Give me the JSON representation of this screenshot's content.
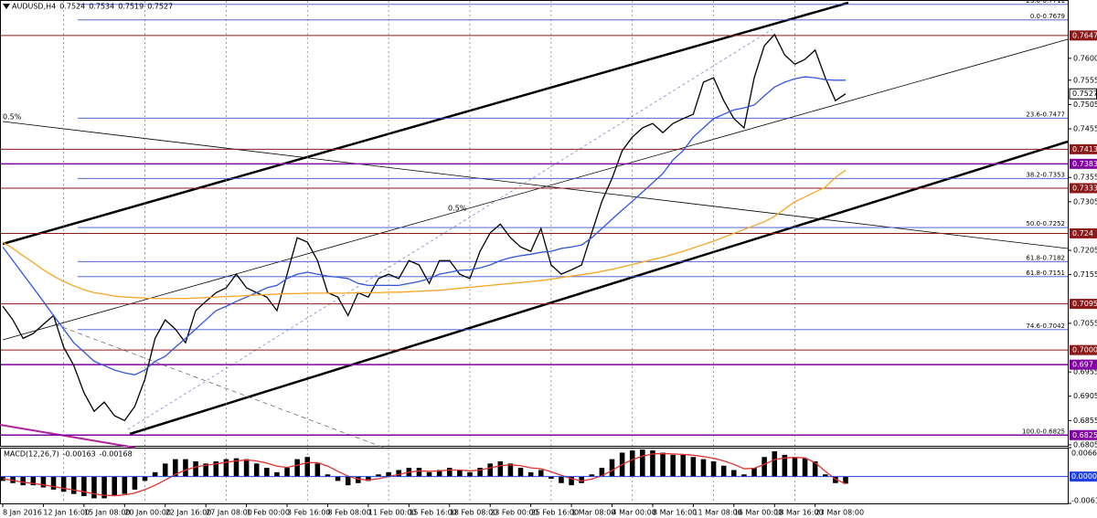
{
  "chart_data": [
    {
      "type": "line",
      "title": "AUDUSD,H4",
      "open": 0.7524,
      "high": 0.7534,
      "low": 0.7519,
      "categories": [
        "8 Jan 2016",
        null,
        null,
        null,
        "12 Jan 16:00",
        null,
        null,
        null,
        "15 Jan 08:00",
        null,
        null,
        null,
        "20 Jan 00:00",
        null,
        null,
        null,
        "22 Jan 16:00",
        null,
        null,
        null,
        "27 Jan 08:00",
        null,
        null,
        null,
        "1 Feb 00:00",
        null,
        null,
        null,
        "3 Feb 16:00",
        null,
        null,
        null,
        "8 Feb 08:00",
        null,
        null,
        null,
        "11 Feb 00:00",
        null,
        null,
        null,
        "15 Feb 16:00",
        null,
        null,
        null,
        "18 Feb 08:00",
        null,
        null,
        null,
        "23 Feb 00:00",
        null,
        null,
        null,
        "25 Feb 16:00",
        null,
        null,
        null,
        "1 Mar 08:00",
        null,
        null,
        null,
        "4 Mar 00:00",
        null,
        null,
        null,
        "8 Mar 16:00",
        null,
        null,
        null,
        "11 Mar 08:00",
        null,
        null,
        null,
        "16 Mar 00:00",
        null,
        null,
        null,
        "18 Mar 16:00",
        null,
        null,
        null,
        "23 Mar 08:00",
        null,
        null,
        null
      ],
      "series": [
        {
          "color": "#000000",
          "values": [
            0.709,
            0.7062,
            0.7024,
            0.7034,
            0.7053,
            0.7071,
            0.7006,
            0.6968,
            0.6912,
            0.6874,
            0.6893,
            0.6865,
            0.6855,
            0.6884,
            0.694,
            0.7024,
            0.7062,
            0.7043,
            0.7015,
            0.7081,
            0.71,
            0.7118,
            0.7128,
            0.7156,
            0.7128,
            0.7118,
            0.7109,
            0.7081,
            0.7156,
            0.7231,
            0.7222,
            0.7184,
            0.7118,
            0.7109,
            0.7071,
            0.7118,
            0.7109,
            0.7147,
            0.7156,
            0.7147,
            0.7184,
            0.7175,
            0.7137,
            0.7184,
            0.7184,
            0.7156,
            0.7147,
            0.7203,
            0.7241,
            0.7259,
            0.7231,
            0.7212,
            0.7203,
            0.725,
            0.7175,
            0.7156,
            0.7165,
            0.7175,
            0.7241,
            0.7306,
            0.7353,
            0.741,
            0.7438,
            0.7457,
            0.7466,
            0.7447,
            0.7466,
            0.7476,
            0.7485,
            0.7551,
            0.756,
            0.7513,
            0.7476,
            0.7457,
            0.756,
            0.7626,
            0.7649,
            0.7607,
            0.7588,
            0.7598,
            0.7617,
            0.756,
            0.7513,
            0.7527
          ]
        },
        {
          "color": "#3355dd",
          "values": [
            0.7212,
            0.7184,
            0.7156,
            0.7128,
            0.71,
            0.7071,
            0.7043,
            0.7015,
            0.6996,
            0.6977,
            0.6968,
            0.6959,
            0.6953,
            0.6949,
            0.6959,
            0.6977,
            0.6987,
            0.7006,
            0.7024,
            0.7043,
            0.7062,
            0.7081,
            0.709,
            0.71,
            0.7109,
            0.7118,
            0.7128,
            0.7133,
            0.7147,
            0.7156,
            0.716,
            0.7156,
            0.7152,
            0.715,
            0.7147,
            0.7137,
            0.7133,
            0.7133,
            0.7133,
            0.7133,
            0.7137,
            0.7141,
            0.7147,
            0.7156,
            0.716,
            0.7164,
            0.7165,
            0.7169,
            0.7175,
            0.7184,
            0.719,
            0.7194,
            0.7197,
            0.7201,
            0.7203,
            0.7209,
            0.7212,
            0.7216,
            0.7231,
            0.725,
            0.7269,
            0.7288,
            0.7306,
            0.7325,
            0.7344,
            0.7363,
            0.7391,
            0.741,
            0.7438,
            0.7457,
            0.7476,
            0.7485,
            0.7494,
            0.7498,
            0.7504,
            0.7523,
            0.7541,
            0.7551,
            0.7558,
            0.7562,
            0.756,
            0.7556,
            0.7555,
            0.7555
          ]
        },
        {
          "color": "#f5a623",
          "values": [
            0.7222,
            0.7209,
            0.7194,
            0.718,
            0.7165,
            0.7152,
            0.7141,
            0.7132,
            0.7124,
            0.7118,
            0.7115,
            0.7111,
            0.7109,
            0.7108,
            0.7107,
            0.7106,
            0.7106,
            0.7106,
            0.7106,
            0.7107,
            0.7108,
            0.7109,
            0.711,
            0.7111,
            0.7112,
            0.7113,
            0.7114,
            0.7115,
            0.7116,
            0.7116,
            0.7117,
            0.7117,
            0.7117,
            0.7117,
            0.7117,
            0.7118,
            0.7118,
            0.7118,
            0.7119,
            0.7119,
            0.712,
            0.7121,
            0.7122,
            0.7123,
            0.7125,
            0.7127,
            0.7129,
            0.7131,
            0.7133,
            0.7135,
            0.7137,
            0.7139,
            0.7141,
            0.7143,
            0.7146,
            0.7149,
            0.7152,
            0.7155,
            0.7158,
            0.7162,
            0.7166,
            0.7171,
            0.7176,
            0.7181,
            0.7186,
            0.7191,
            0.7197,
            0.7203,
            0.721,
            0.7217,
            0.7224,
            0.7232,
            0.724,
            0.7248,
            0.7256,
            0.7264,
            0.7275,
            0.729,
            0.7305,
            0.7315,
            0.7325,
            0.7335,
            0.7355,
            0.737
          ]
        }
      ],
      "ylim": [
        0.6803,
        0.772
      ],
      "yticks": [
        {
          "value": 0.76,
          "label": "0.7600"
        },
        0.7555,
        0.7505,
        0.7455,
        0.7355,
        0.7305,
        0.7205,
        0.7155,
        0.7055,
        0.6955,
        0.6905,
        0.6855,
        0.6805
      ],
      "levels": [
        {
          "value": 0.7647,
          "color": "#8b1a1a"
        },
        {
          "value": 0.7413,
          "color": "#8b1a1a"
        },
        {
          "value": 0.7383,
          "color": "#8000a0"
        },
        {
          "value": 0.7333,
          "color": "#8b1a1a"
        },
        {
          "value": 0.724,
          "color": "#8b1a1a"
        },
        {
          "value": 0.7095,
          "color": "#8b1a1a"
        },
        {
          "value": 0.7,
          "label": "0.7000",
          "color": "#8b1a1a"
        },
        {
          "value": 0.697,
          "color": "#8000a0"
        },
        {
          "value": 0.6825,
          "color": "#8000a0"
        }
      ],
      "fib_levels": [
        {
          "value": 0.7711,
          "label": "23.6-0.7711"
        },
        {
          "value": 0.7679,
          "label": "0.0-0.7679"
        },
        {
          "value": 0.7477,
          "label": "23.6-0.7477"
        },
        {
          "value": 0.7353,
          "label": "38.2-0.7353"
        },
        {
          "value": 0.7252,
          "label": "50.0-0.7252"
        },
        {
          "value": 0.7182,
          "label": "61.8-0.7182"
        },
        {
          "value": 0.7151,
          "label": "61.8-0.7151"
        },
        {
          "value": 0.7042,
          "label": "74.6-0.7042"
        },
        {
          "value": 0.6825,
          "label": "100.0-0.6825"
        }
      ],
      "annotations": [
        "0.5%",
        "0.5%"
      ]
    },
    {
      "type": "macd",
      "title": "MACD(12,26,7)",
      "series": [
        {
          "type": "bar",
          "color": "#000000",
          "values": [
            -0.001,
            -0.0015,
            -0.002,
            -0.002,
            -0.0025,
            -0.003,
            -0.0035,
            -0.004,
            -0.0045,
            -0.005,
            -0.005,
            -0.0045,
            -0.004,
            -0.003,
            -0.001,
            0.001,
            0.003,
            0.004,
            0.004,
            0.0035,
            0.003,
            0.0035,
            0.004,
            0.0042,
            0.004,
            0.003,
            0.002,
            0.001,
            0.002,
            0.004,
            0.0045,
            0.003,
            0.0005,
            -0.001,
            -0.002,
            -0.0015,
            -0.001,
            0.0005,
            0.001,
            0.0015,
            0.002,
            0.002,
            0.001,
            0.0015,
            0.002,
            0.0015,
            0.001,
            0.002,
            0.003,
            0.0035,
            0.003,
            0.002,
            0.001,
            0.0015,
            -0.0005,
            -0.0015,
            -0.002,
            -0.0015,
            0.0005,
            0.002,
            0.004,
            0.0055,
            0.006,
            0.0062,
            0.006,
            0.0055,
            0.005,
            0.005,
            0.0045,
            0.004,
            0.0035,
            0.0025,
            0.0015,
            0.0005,
            0.002,
            0.0045,
            0.0058,
            0.005,
            0.0045,
            0.0042,
            0.0035,
            0.0005,
            -0.0015,
            -0.00163
          ]
        },
        {
          "type": "line",
          "color": "#e03030",
          "values": [
            -0.0005,
            -0.0009,
            -0.0013,
            -0.0016,
            -0.0019,
            -0.0023,
            -0.0027,
            -0.0031,
            -0.0035,
            -0.004,
            -0.0043,
            -0.0044,
            -0.0042,
            -0.0038,
            -0.003,
            -0.002,
            -0.0008,
            0.0005,
            0.0015,
            0.0022,
            0.0026,
            0.0029,
            0.0033,
            0.0036,
            0.0038,
            0.0036,
            0.0031,
            0.0024,
            0.0021,
            0.0026,
            0.0032,
            0.0032,
            0.0024,
            0.0012,
            0.0001,
            -0.0006,
            -0.0008,
            -0.0005,
            0,
            0.0005,
            0.001,
            0.0013,
            0.0012,
            0.0013,
            0.0015,
            0.0015,
            0.0013,
            0.0015,
            0.002,
            0.0025,
            0.0027,
            0.0025,
            0.002,
            0.0018,
            0.0011,
            0.0003,
            -0.0005,
            -0.001,
            -0.0006,
            0.0002,
            0.0014,
            0.0028,
            0.0039,
            0.0047,
            0.0052,
            0.0053,
            0.0052,
            0.0051,
            0.0049,
            0.0046,
            0.0042,
            0.0036,
            0.0028,
            0.0018,
            0.0019,
            0.0028,
            0.0039,
            0.0043,
            0.0044,
            0.0043,
            0.0032,
            0.0012,
            -0.0006,
            -0.00168
          ]
        }
      ],
      "ylim": [
        -0.00617,
        0.00665
      ],
      "yticks": [
        0.00665,
        {
          "value": 0,
          "label": "0.00000"
        },
        -0.00617
      ]
    }
  ]
}
